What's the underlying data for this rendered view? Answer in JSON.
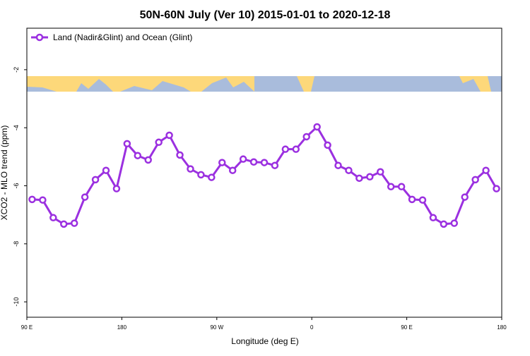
{
  "chart_data": {
    "type": "line",
    "title": "50N-60N July (Ver 10)   2015-01-01 to 2020-12-18",
    "xlabel": "Longitude (deg E)",
    "ylabel": "XCO2 - MLO trend (ppm)",
    "x": [
      95,
      105,
      115,
      125,
      135,
      145,
      155,
      165,
      175,
      185,
      195,
      205,
      215,
      225,
      235,
      245,
      255,
      265,
      275,
      285,
      295,
      305,
      315,
      325,
      335,
      345,
      355,
      365,
      375,
      385,
      395,
      405,
      415,
      425,
      435,
      445,
      455,
      465,
      475,
      485,
      495,
      505,
      515,
      525,
      535
    ],
    "series": [
      {
        "name": "Land (Nadir&Glint) and Ocean (Glint)",
        "color": "#9b30e0",
        "values": [
          -6.47,
          -6.49,
          -7.1,
          -7.32,
          -7.29,
          -6.39,
          -5.79,
          -5.47,
          -6.1,
          -4.55,
          -4.96,
          -5.11,
          -4.5,
          -4.26,
          -4.94,
          -5.42,
          -5.62,
          -5.71,
          -5.2,
          -5.47,
          -5.08,
          -5.18,
          -5.2,
          -5.3,
          -4.74,
          -4.74,
          -4.31,
          -3.97,
          -4.6,
          -5.3,
          -5.47,
          -5.74,
          -5.69,
          -5.52,
          -6.03,
          -6.03,
          -6.47,
          -6.49,
          -7.1,
          -7.32,
          -7.29,
          -6.39,
          -5.79,
          -5.47,
          -6.1
        ]
      }
    ],
    "xlim": [
      90,
      540
    ],
    "xticks": [
      {
        "value": 90,
        "label": "90 E"
      },
      180,
      {
        "value": 270,
        "label": "90 W"
      },
      {
        "value": 360,
        "label": "0"
      },
      {
        "value": 450,
        "label": "90 E"
      },
      {
        "value": 540,
        "label": "180"
      }
    ],
    "ylim": [
      -10.53,
      -0.57
    ],
    "yticks": [
      -10,
      -8,
      -6,
      -4,
      -2
    ],
    "legend": "upper left"
  }
}
